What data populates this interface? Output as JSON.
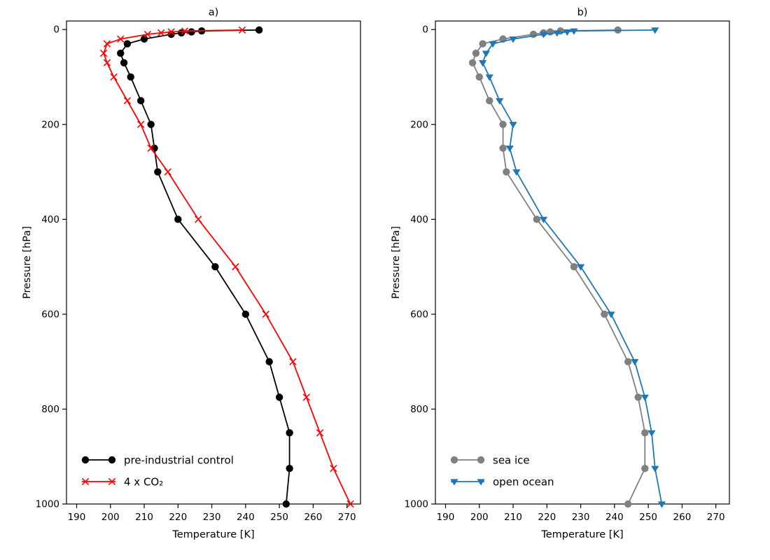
{
  "figure": {
    "background": "#ffffff"
  },
  "colors": {
    "black": "#000000",
    "red": "#ff0000",
    "gray": "#808080",
    "blue": "#1f77b4",
    "axis": "#000000"
  },
  "chart_data": [
    {
      "id": "a",
      "type": "line",
      "title": "a)",
      "xlabel": "Temperature [K]",
      "ylabel": "Pressure [hPa]",
      "xlim": [
        187,
        274
      ],
      "ylim": [
        -18,
        1000
      ],
      "y_inverted": true,
      "grid": false,
      "legend_position": "lower left",
      "xticks": [
        190,
        200,
        210,
        220,
        230,
        240,
        250,
        260,
        270
      ],
      "yticks": [
        0,
        200,
        400,
        600,
        800,
        1000
      ],
      "pressure_hPa": [
        1,
        3,
        5,
        7,
        10,
        20,
        30,
        50,
        70,
        100,
        150,
        200,
        250,
        300,
        400,
        500,
        600,
        700,
        775,
        850,
        925,
        1000
      ],
      "series": [
        {
          "name": "pre-industrial control",
          "color": "#000000",
          "marker": "circle",
          "values": [
            244,
            227,
            224,
            221,
            218,
            210,
            205,
            203,
            204,
            206,
            209,
            212,
            213,
            214,
            220,
            231,
            240,
            247,
            250,
            253,
            253,
            252
          ]
        },
        {
          "name": "4 x CO₂",
          "color": "#ff0000",
          "marker": "x",
          "values": [
            239,
            222,
            218,
            215,
            211,
            203,
            199,
            198,
            199,
            201,
            205,
            209,
            212,
            217,
            226,
            237,
            246,
            254,
            258,
            262,
            266,
            271
          ]
        }
      ]
    },
    {
      "id": "b",
      "type": "line",
      "title": "b)",
      "xlabel": "Temperature [K]",
      "ylabel": "Pressure [hPa]",
      "xlim": [
        187,
        274
      ],
      "ylim": [
        -18,
        1000
      ],
      "y_inverted": true,
      "grid": false,
      "legend_position": "lower left",
      "xticks": [
        190,
        200,
        210,
        220,
        230,
        240,
        250,
        260,
        270
      ],
      "yticks": [
        0,
        200,
        400,
        600,
        800,
        1000
      ],
      "pressure_hPa": [
        1,
        3,
        5,
        7,
        10,
        20,
        30,
        50,
        70,
        100,
        150,
        200,
        250,
        300,
        400,
        500,
        600,
        700,
        775,
        850,
        925,
        1000
      ],
      "series": [
        {
          "name": "sea ice",
          "color": "#808080",
          "marker": "circle",
          "values": [
            241,
            224,
            221,
            219,
            216,
            207,
            201,
            199,
            198,
            200,
            203,
            207,
            207,
            208,
            217,
            228,
            237,
            244,
            247,
            249,
            249,
            244
          ]
        },
        {
          "name": "open ocean",
          "color": "#1f77b4",
          "marker": "triangle-down",
          "values": [
            252,
            228,
            226,
            223,
            219,
            210,
            204,
            202,
            201,
            203,
            206,
            210,
            209,
            211,
            219,
            230,
            239,
            246,
            249,
            251,
            252,
            254
          ]
        }
      ]
    }
  ]
}
